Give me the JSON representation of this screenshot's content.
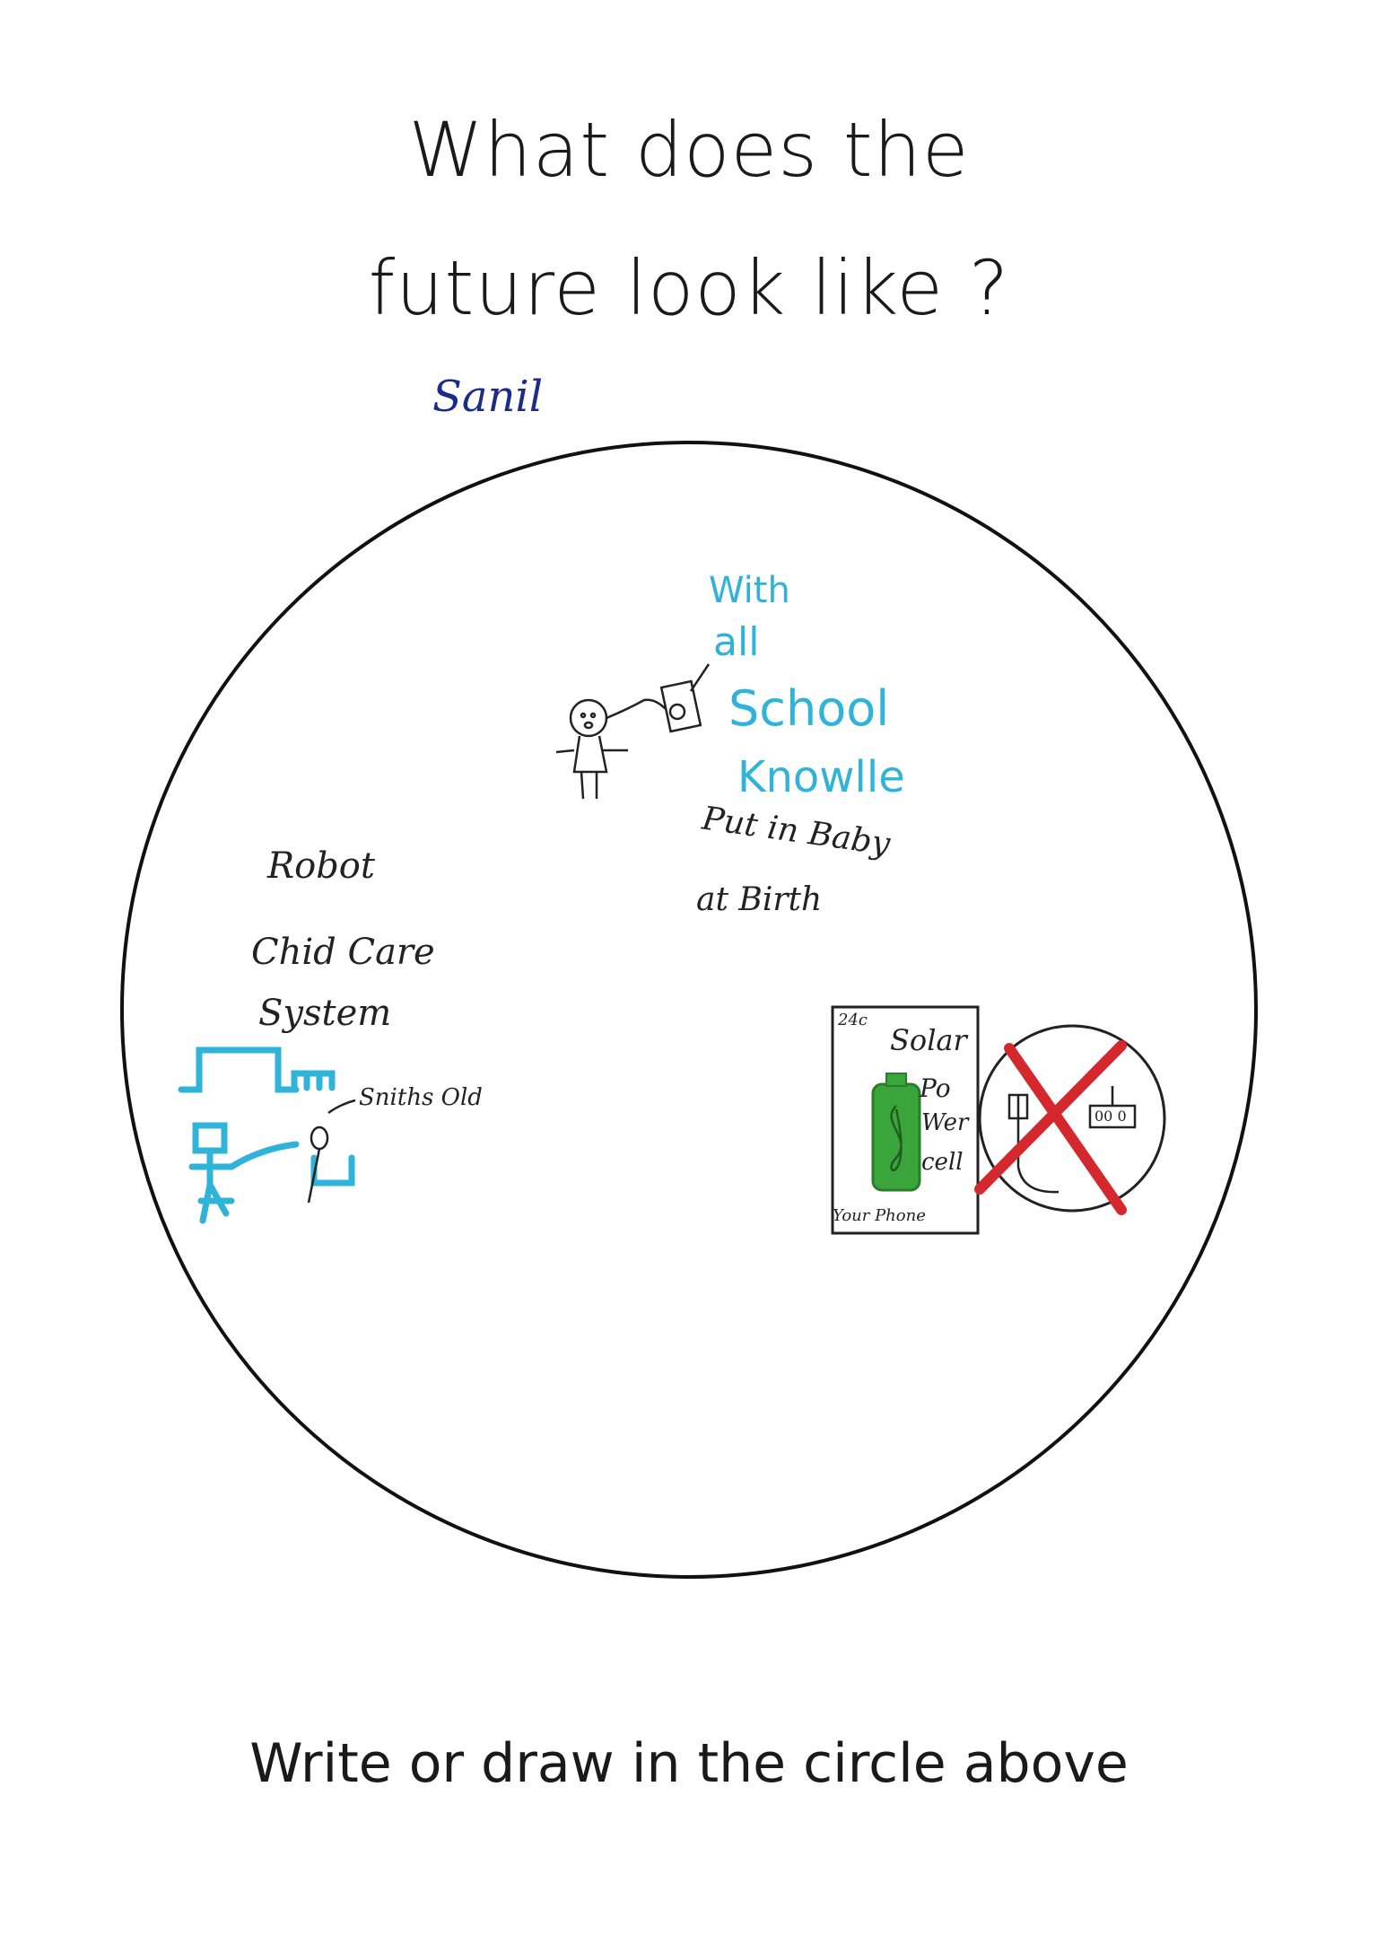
{
  "title": {
    "line1": "What does the",
    "line2": "future look like ?"
  },
  "student_name": "Sanil",
  "drawing": {
    "blue_text": [
      "With",
      "all",
      "School",
      "Knowlle"
    ],
    "baby_note": [
      "Put in Baby",
      "at Birth"
    ],
    "robot_note": [
      "Robot",
      "Chid Care",
      "System"
    ],
    "arrow_label": "Sniths Old",
    "phone_card": {
      "corner": "24c",
      "label": [
        "Solar",
        "Po",
        "Wer",
        "cell"
      ],
      "bottom": "Your Phone"
    },
    "crossed_device_label": "00 0",
    "colors": {
      "blue": "#2fb3d8",
      "green": "#3aa53a",
      "red": "#d4282e",
      "ink": "#222222"
    }
  },
  "footer": "Write or draw in the circle above"
}
